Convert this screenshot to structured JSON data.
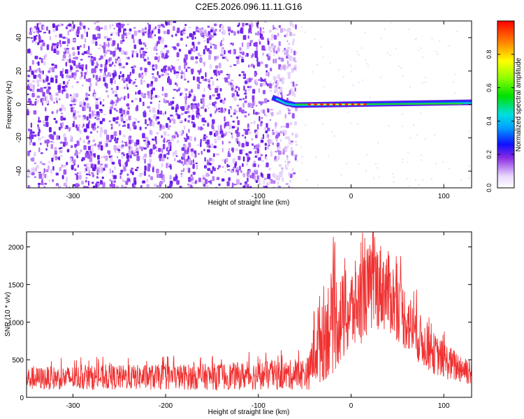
{
  "chart_data": [
    {
      "type": "heatmap",
      "title": "C2E5.2026.096.11.11.G16",
      "xlabel": "Height of straight line (km)",
      "ylabel": "Frequency (Hz)",
      "xlim": [
        -350,
        130
      ],
      "ylim": [
        -50,
        50
      ],
      "x_ticks": [
        -300,
        -200,
        -100,
        0,
        100
      ],
      "y_ticks": [
        -40,
        -20,
        0,
        20,
        40
      ],
      "colorbar": {
        "label": "Normalized spectral amplitude",
        "range": [
          0,
          1
        ],
        "ticks": [
          0.0,
          0.2,
          0.4,
          0.6,
          0.8
        ],
        "tick_labels": [
          "0.0",
          "0.2",
          "0.4",
          "0.6",
          "0.8"
        ]
      },
      "features": {
        "noise_region_x": [
          -350,
          -60
        ],
        "carrier_start_x": -85,
        "carrier_frequency_hz": 0,
        "peak_region_x": [
          -45,
          15
        ]
      }
    },
    {
      "type": "line",
      "xlabel": "Height of straight line (km)",
      "ylabel": "SNR (10 * v/v)",
      "xlim": [
        -350,
        130
      ],
      "ylim": [
        0,
        2200
      ],
      "x_ticks": [
        -300,
        -200,
        -100,
        0,
        100
      ],
      "y_ticks": [
        0,
        500,
        1000,
        1500,
        2000
      ],
      "series": [
        {
          "color": "#f03030",
          "envelope": {
            "x": [
              -350,
              -300,
              -250,
              -200,
              -150,
              -100,
              -60,
              -45,
              -40,
              -30,
              -20,
              -10,
              0,
              10,
              20,
              30,
              40,
              50,
              60,
              70,
              80,
              90,
              100,
              110,
              120,
              130
            ],
            "lo": [
              100,
              100,
              100,
              100,
              100,
              100,
              100,
              100,
              120,
              200,
              300,
              450,
              550,
              700,
              850,
              900,
              850,
              750,
              600,
              480,
              380,
              300,
              250,
              200,
              180,
              150
            ],
            "hi": [
              400,
              420,
              430,
              440,
              450,
              480,
              500,
              550,
              1200,
              1500,
              1700,
              1650,
              1750,
              1900,
              2050,
              2100,
              1950,
              1700,
              1450,
              1200,
              1000,
              850,
              750,
              650,
              600,
              550
            ]
          }
        }
      ]
    }
  ]
}
